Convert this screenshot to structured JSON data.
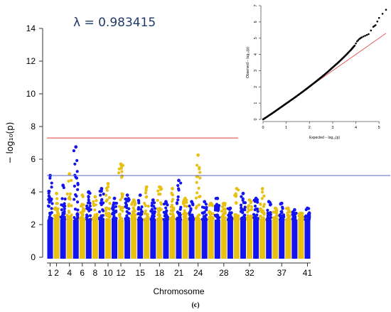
{
  "lambda_text": "λ = 0.983415",
  "caption": "(c)",
  "chart_data": [
    {
      "type": "scatter",
      "title": "",
      "xlabel": "Chromosome",
      "ylabel": "− log₁₀(p)",
      "ylim": [
        0,
        14
      ],
      "yticks": [
        0,
        2,
        4,
        6,
        8,
        10,
        12,
        14
      ],
      "xtick_labels": [
        "1",
        "2",
        "4",
        "6",
        "8",
        "10",
        "12",
        "15",
        "18",
        "21",
        "24",
        "28",
        "32",
        "37",
        "41"
      ],
      "xtick_positions_chrom": [
        1,
        2,
        4,
        6,
        8,
        10,
        12,
        15,
        18,
        21,
        24,
        28,
        32,
        37,
        41
      ],
      "chromosome_count": 41,
      "series_colors": [
        "#1414ee",
        "#e8c012"
      ],
      "thresholds": [
        {
          "y": 7.3,
          "color": "#e23b3b"
        },
        {
          "y": 5.0,
          "color": "#5a64c8"
        }
      ],
      "peaks": [
        {
          "chrom": 1,
          "y": 5.0
        },
        {
          "chrom": 2,
          "y": 3.9
        },
        {
          "chrom": 3,
          "y": 4.4
        },
        {
          "chrom": 4,
          "y": 5.1
        },
        {
          "chrom": 5,
          "y": 6.75
        },
        {
          "chrom": 6,
          "y": 3.8
        },
        {
          "chrom": 7,
          "y": 4.0
        },
        {
          "chrom": 8,
          "y": 3.7
        },
        {
          "chrom": 9,
          "y": 4.2
        },
        {
          "chrom": 10,
          "y": 4.5
        },
        {
          "chrom": 11,
          "y": 3.6
        },
        {
          "chrom": 12,
          "y": 5.7
        },
        {
          "chrom": 13,
          "y": 3.8
        },
        {
          "chrom": 14,
          "y": 3.5
        },
        {
          "chrom": 15,
          "y": 3.8
        },
        {
          "chrom": 16,
          "y": 4.3
        },
        {
          "chrom": 17,
          "y": 3.5
        },
        {
          "chrom": 18,
          "y": 4.3
        },
        {
          "chrom": 19,
          "y": 3.4
        },
        {
          "chrom": 20,
          "y": 4.2
        },
        {
          "chrom": 21,
          "y": 4.7
        },
        {
          "chrom": 22,
          "y": 3.6
        },
        {
          "chrom": 23,
          "y": 3.4
        },
        {
          "chrom": 24,
          "y": 6.25
        },
        {
          "chrom": 25,
          "y": 3.4
        },
        {
          "chrom": 26,
          "y": 3.3
        },
        {
          "chrom": 27,
          "y": 3.6
        },
        {
          "chrom": 28,
          "y": 3.3
        },
        {
          "chrom": 29,
          "y": 3.0
        },
        {
          "chrom": 30,
          "y": 4.2
        },
        {
          "chrom": 31,
          "y": 3.9
        },
        {
          "chrom": 32,
          "y": 3.5
        },
        {
          "chrom": 33,
          "y": 3.6
        },
        {
          "chrom": 34,
          "y": 4.2
        },
        {
          "chrom": 35,
          "y": 3.4
        },
        {
          "chrom": 36,
          "y": 3.0
        },
        {
          "chrom": 37,
          "y": 3.3
        },
        {
          "chrom": 38,
          "y": 3.0
        },
        {
          "chrom": 39,
          "y": 2.9
        },
        {
          "chrom": 40,
          "y": 2.7
        },
        {
          "chrom": 41,
          "y": 3.0
        }
      ],
      "background_range": [
        0,
        2.3
      ]
    },
    {
      "type": "scatter",
      "title": "",
      "xlabel": "Expected − log₁₀(p)",
      "ylabel": "Observed − log₁₀(p)",
      "xlim": [
        0,
        5.3
      ],
      "ylim": [
        0,
        7
      ],
      "xticks": [
        0,
        1,
        2,
        3,
        4,
        5
      ],
      "yticks": [
        0,
        1,
        2,
        3,
        4,
        5,
        6,
        7
      ],
      "reference_line": {
        "from": [
          0,
          0
        ],
        "to": [
          5.3,
          5.3
        ],
        "color": "#e23b3b"
      },
      "points_color": "#000000",
      "points": [
        [
          0,
          0
        ],
        [
          0.2,
          0.19
        ],
        [
          0.4,
          0.38
        ],
        [
          0.6,
          0.58
        ],
        [
          0.8,
          0.78
        ],
        [
          1.0,
          0.98
        ],
        [
          1.2,
          1.18
        ],
        [
          1.4,
          1.38
        ],
        [
          1.6,
          1.59
        ],
        [
          1.8,
          1.8
        ],
        [
          2.0,
          2.02
        ],
        [
          2.2,
          2.24
        ],
        [
          2.4,
          2.47
        ],
        [
          2.6,
          2.7
        ],
        [
          2.8,
          2.94
        ],
        [
          3.0,
          3.2
        ],
        [
          3.2,
          3.45
        ],
        [
          3.4,
          3.72
        ],
        [
          3.6,
          4.0
        ],
        [
          3.8,
          4.3
        ],
        [
          3.95,
          4.55
        ],
        [
          4.05,
          4.8
        ],
        [
          4.15,
          4.95
        ],
        [
          4.25,
          5.05
        ],
        [
          4.4,
          5.15
        ],
        [
          4.55,
          5.25
        ],
        [
          4.75,
          5.7
        ],
        [
          4.85,
          5.8
        ],
        [
          5.0,
          6.25
        ],
        [
          5.3,
          6.75
        ]
      ]
    }
  ]
}
